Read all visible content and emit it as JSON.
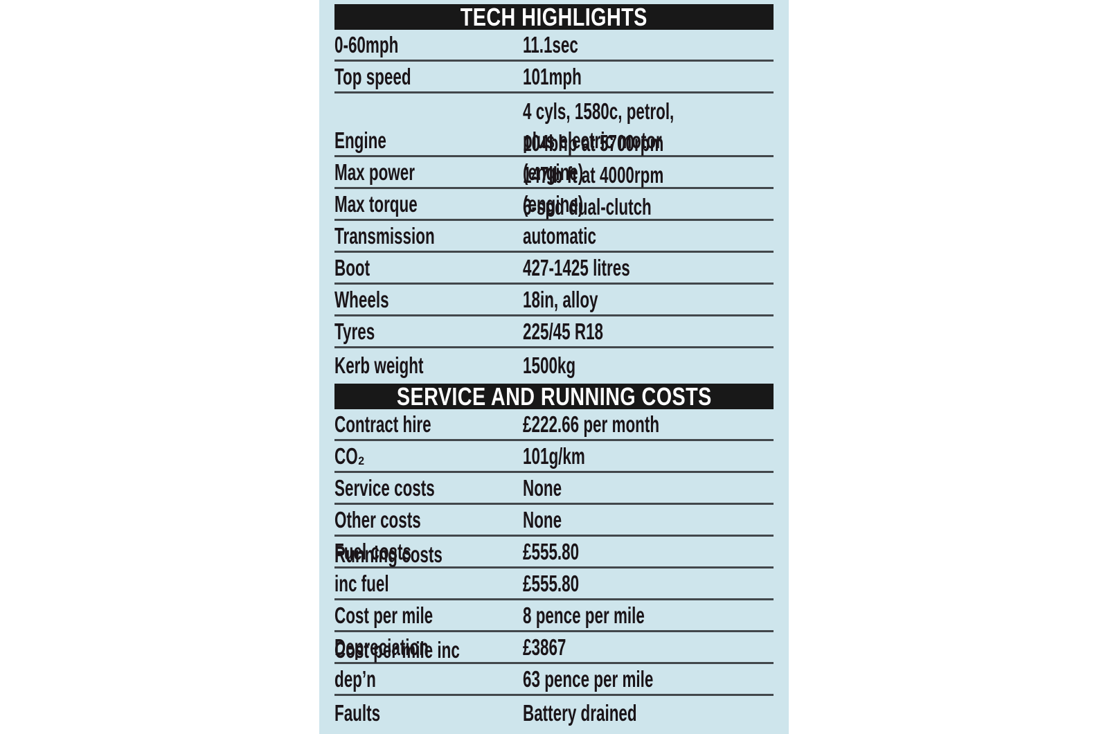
{
  "panel": {
    "background_color": "#cee5ec",
    "bar_color": "#181818",
    "text_color": "#1a1418",
    "divider_color": "#42474b"
  },
  "sections": [
    {
      "title": "TECH HIGHLIGHTS",
      "rows": [
        {
          "label": "0-60mph",
          "value": "11.1sec"
        },
        {
          "label": "Top speed",
          "value": "101mph"
        },
        {
          "label": "Engine",
          "value": "4 cyls, 1580c, petrol,\nplus electric motor"
        },
        {
          "label": "Max power",
          "value": "104bhp at 5700rpm (engine)"
        },
        {
          "label": "Max torque",
          "value": "147lb ft at 4000rpm (engine)"
        },
        {
          "label": "Transmission",
          "value": "6-spd dual-clutch automatic"
        },
        {
          "label": "Boot",
          "value": "427-1425 litres"
        },
        {
          "label": "Wheels",
          "value": "18in, alloy"
        },
        {
          "label": "Tyres",
          "value": "225/45 R18"
        },
        {
          "label": "Kerb weight",
          "value": "1500kg"
        }
      ]
    },
    {
      "title": "SERVICE AND RUNNING COSTS",
      "rows": [
        {
          "label": "Contract hire",
          "value": "£222.66 per month"
        },
        {
          "label": "CO₂",
          "value": "101g/km"
        },
        {
          "label": "Service costs",
          "value": "None"
        },
        {
          "label": "Other costs",
          "value": "None"
        },
        {
          "label": "Fuel costs",
          "value": "£555.80"
        },
        {
          "label": "Running costs inc fuel",
          "value": "£555.80"
        },
        {
          "label": "Cost per mile",
          "value": "8 pence per mile"
        },
        {
          "label": "Depreciation",
          "value": "£3867"
        },
        {
          "label": "Cost per mile inc dep’n",
          "value": "63 pence per mile"
        },
        {
          "label": "Faults",
          "value": "Battery drained"
        }
      ]
    }
  ]
}
